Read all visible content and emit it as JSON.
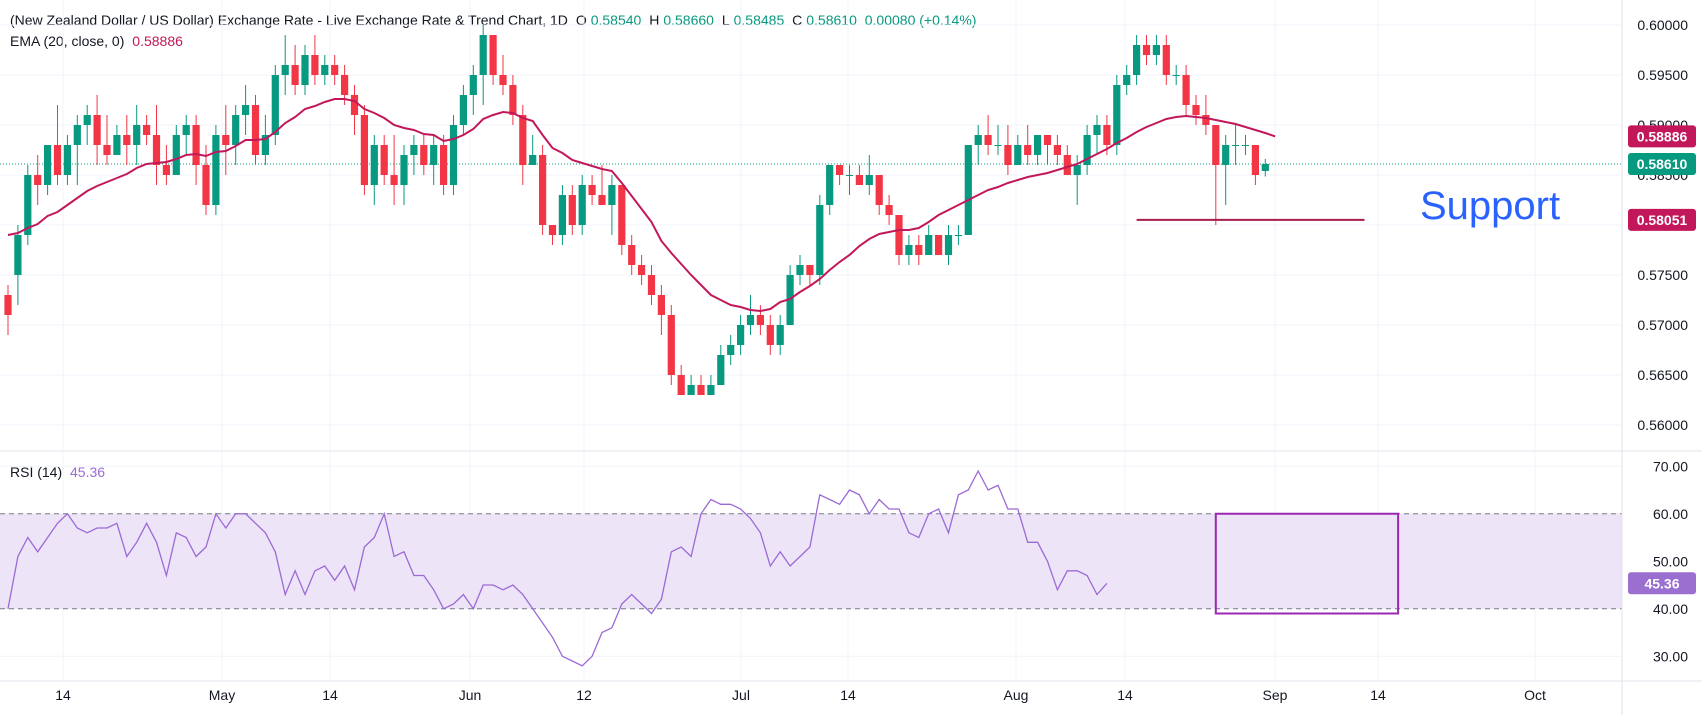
{
  "header": {
    "title": "(New Zealand Dollar / US Dollar) Exchange Rate - Live Exchange Rate & Trend Chart, 1D",
    "ohlc": [
      {
        "label": "O",
        "value": "0.58540"
      },
      {
        "label": "H",
        "value": "0.58660"
      },
      {
        "label": "L",
        "value": "0.58485"
      },
      {
        "label": "C",
        "value": "0.58610"
      }
    ],
    "change": "0.00080 (+0.14%)"
  },
  "ema_legend": {
    "label": "EMA (20, close, 0)",
    "value": "0.58886"
  },
  "rsi_legend": {
    "label": "RSI (14)",
    "value": "45.36"
  },
  "annotations": {
    "support_text": "Support"
  },
  "colors": {
    "up": "#089981",
    "down": "#f23645",
    "ema": "#c2185b",
    "rsi": "#9c6ad6",
    "rsi_band": "#ede4f8",
    "support_line": "#a61e4d",
    "support_text": "#2962ff",
    "price_badge": "#089981",
    "ema_badge": "#c2185b",
    "support_badge": "#c2185b",
    "rsi_badge": "#9b6fcf",
    "box": "#9c27b0"
  },
  "chart_data": [
    {
      "type": "candlestick",
      "title": "",
      "ylim": [
        0.5575,
        0.6025
      ],
      "x_tick_labels": [
        "14",
        "May",
        "14",
        "Jun",
        "12",
        "Jul",
        "14",
        "Aug",
        "14",
        "Sep",
        "14",
        "Oct"
      ],
      "y_tick_labels": [
        "0.60000",
        "0.59500",
        "0.59000",
        "0.58500",
        "0.58000",
        "0.57500",
        "0.57000",
        "0.56500",
        "0.56000"
      ],
      "y_ticks": [
        0.6,
        0.595,
        0.59,
        0.585,
        0.58,
        0.575,
        0.57,
        0.565,
        0.56
      ],
      "last_price": {
        "value": 0.5861,
        "label": "0.58610"
      },
      "ema_last": {
        "value": 0.58886,
        "label": "0.58886"
      },
      "support": {
        "value": 0.58051,
        "label": "0.58051"
      },
      "candles": [
        [
          0.573,
          0.574,
          0.569,
          0.571
        ],
        [
          0.575,
          0.58,
          0.572,
          0.579
        ],
        [
          0.579,
          0.586,
          0.578,
          0.585
        ],
        [
          0.585,
          0.587,
          0.582,
          0.584
        ],
        [
          0.584,
          0.588,
          0.583,
          0.588
        ],
        [
          0.588,
          0.592,
          0.584,
          0.585
        ],
        [
          0.585,
          0.589,
          0.584,
          0.588
        ],
        [
          0.588,
          0.591,
          0.584,
          0.59
        ],
        [
          0.59,
          0.592,
          0.588,
          0.591
        ],
        [
          0.591,
          0.593,
          0.586,
          0.588
        ],
        [
          0.588,
          0.591,
          0.586,
          0.587
        ],
        [
          0.587,
          0.59,
          0.587,
          0.589
        ],
        [
          0.589,
          0.591,
          0.586,
          0.588
        ],
        [
          0.588,
          0.592,
          0.586,
          0.59
        ],
        [
          0.59,
          0.591,
          0.588,
          0.589
        ],
        [
          0.589,
          0.592,
          0.584,
          0.586
        ],
        [
          0.586,
          0.588,
          0.584,
          0.585
        ],
        [
          0.585,
          0.59,
          0.585,
          0.589
        ],
        [
          0.589,
          0.591,
          0.587,
          0.59
        ],
        [
          0.59,
          0.591,
          0.584,
          0.586
        ],
        [
          0.586,
          0.588,
          0.581,
          0.582
        ],
        [
          0.582,
          0.59,
          0.581,
          0.589
        ],
        [
          0.589,
          0.592,
          0.585,
          0.588
        ],
        [
          0.588,
          0.592,
          0.586,
          0.591
        ],
        [
          0.591,
          0.594,
          0.589,
          0.592
        ],
        [
          0.592,
          0.593,
          0.586,
          0.587
        ],
        [
          0.587,
          0.591,
          0.586,
          0.589
        ],
        [
          0.589,
          0.596,
          0.588,
          0.595
        ],
        [
          0.595,
          0.599,
          0.593,
          0.596
        ],
        [
          0.596,
          0.598,
          0.593,
          0.594
        ],
        [
          0.594,
          0.598,
          0.593,
          0.597
        ],
        [
          0.597,
          0.599,
          0.594,
          0.595
        ],
        [
          0.595,
          0.597,
          0.594,
          0.596
        ],
        [
          0.596,
          0.597,
          0.594,
          0.595
        ],
        [
          0.595,
          0.596,
          0.592,
          0.593
        ],
        [
          0.593,
          0.594,
          0.589,
          0.591
        ],
        [
          0.591,
          0.592,
          0.583,
          0.584
        ],
        [
          0.584,
          0.589,
          0.582,
          0.588
        ],
        [
          0.588,
          0.589,
          0.584,
          0.585
        ],
        [
          0.585,
          0.589,
          0.582,
          0.584
        ],
        [
          0.584,
          0.588,
          0.582,
          0.587
        ],
        [
          0.587,
          0.589,
          0.585,
          0.588
        ],
        [
          0.588,
          0.589,
          0.585,
          0.586
        ],
        [
          0.586,
          0.589,
          0.584,
          0.588
        ],
        [
          0.588,
          0.589,
          0.583,
          0.584
        ],
        [
          0.584,
          0.591,
          0.583,
          0.59
        ],
        [
          0.59,
          0.594,
          0.589,
          0.593
        ],
        [
          0.593,
          0.596,
          0.591,
          0.595
        ],
        [
          0.595,
          0.6,
          0.592,
          0.599
        ],
        [
          0.599,
          0.599,
          0.594,
          0.595
        ],
        [
          0.595,
          0.597,
          0.593,
          0.594
        ],
        [
          0.594,
          0.595,
          0.59,
          0.591
        ],
        [
          0.591,
          0.592,
          0.584,
          0.586
        ],
        [
          0.586,
          0.589,
          0.586,
          0.587
        ],
        [
          0.587,
          0.588,
          0.579,
          0.58
        ],
        [
          0.58,
          0.58,
          0.578,
          0.579
        ],
        [
          0.579,
          0.584,
          0.578,
          0.583
        ],
        [
          0.583,
          0.584,
          0.579,
          0.58
        ],
        [
          0.58,
          0.585,
          0.579,
          0.584
        ],
        [
          0.584,
          0.585,
          0.582,
          0.583
        ],
        [
          0.583,
          0.586,
          0.582,
          0.582
        ],
        [
          0.582,
          0.585,
          0.579,
          0.584
        ],
        [
          0.584,
          0.584,
          0.577,
          0.578
        ],
        [
          0.578,
          0.579,
          0.575,
          0.576
        ],
        [
          0.576,
          0.577,
          0.574,
          0.575
        ],
        [
          0.575,
          0.576,
          0.572,
          0.573
        ],
        [
          0.573,
          0.574,
          0.569,
          0.571
        ],
        [
          0.571,
          0.572,
          0.564,
          0.565
        ],
        [
          0.565,
          0.566,
          0.563,
          0.563
        ],
        [
          0.563,
          0.565,
          0.563,
          0.564
        ],
        [
          0.564,
          0.565,
          0.563,
          0.563
        ],
        [
          0.563,
          0.565,
          0.563,
          0.564
        ],
        [
          0.564,
          0.568,
          0.564,
          0.567
        ],
        [
          0.567,
          0.569,
          0.566,
          0.568
        ],
        [
          0.568,
          0.571,
          0.567,
          0.57
        ],
        [
          0.57,
          0.573,
          0.569,
          0.571
        ],
        [
          0.571,
          0.572,
          0.569,
          0.57
        ],
        [
          0.57,
          0.571,
          0.567,
          0.568
        ],
        [
          0.568,
          0.571,
          0.567,
          0.57
        ],
        [
          0.57,
          0.576,
          0.57,
          0.575
        ],
        [
          0.575,
          0.577,
          0.574,
          0.576
        ],
        [
          0.576,
          0.576,
          0.574,
          0.575
        ],
        [
          0.575,
          0.583,
          0.574,
          0.582
        ],
        [
          0.582,
          0.586,
          0.581,
          0.586
        ],
        [
          0.586,
          0.586,
          0.584,
          0.585
        ],
        [
          0.585,
          0.586,
          0.583,
          0.585
        ],
        [
          0.585,
          0.586,
          0.584,
          0.584
        ],
        [
          0.584,
          0.587,
          0.583,
          0.585
        ],
        [
          0.585,
          0.585,
          0.581,
          0.582
        ],
        [
          0.582,
          0.583,
          0.58,
          0.581
        ],
        [
          0.581,
          0.581,
          0.576,
          0.577
        ],
        [
          0.577,
          0.579,
          0.576,
          0.578
        ],
        [
          0.578,
          0.579,
          0.576,
          0.577
        ],
        [
          0.577,
          0.58,
          0.577,
          0.579
        ],
        [
          0.579,
          0.579,
          0.577,
          0.577
        ],
        [
          0.577,
          0.58,
          0.576,
          0.579
        ],
        [
          0.579,
          0.58,
          0.578,
          0.579
        ],
        [
          0.579,
          0.588,
          0.579,
          0.588
        ],
        [
          0.588,
          0.59,
          0.586,
          0.589
        ],
        [
          0.589,
          0.591,
          0.587,
          0.588
        ],
        [
          0.588,
          0.59,
          0.587,
          0.588
        ],
        [
          0.588,
          0.59,
          0.585,
          0.586
        ],
        [
          0.586,
          0.589,
          0.586,
          0.588
        ],
        [
          0.588,
          0.59,
          0.586,
          0.587
        ],
        [
          0.587,
          0.589,
          0.586,
          0.589
        ],
        [
          0.589,
          0.589,
          0.586,
          0.588
        ],
        [
          0.588,
          0.589,
          0.586,
          0.587
        ],
        [
          0.587,
          0.588,
          0.585,
          0.585
        ],
        [
          0.585,
          0.587,
          0.582,
          0.586
        ],
        [
          0.586,
          0.59,
          0.585,
          0.589
        ],
        [
          0.589,
          0.591,
          0.587,
          0.59
        ],
        [
          0.59,
          0.591,
          0.587,
          0.588
        ],
        [
          0.588,
          0.595,
          0.587,
          0.594
        ],
        [
          0.594,
          0.596,
          0.593,
          0.595
        ],
        [
          0.595,
          0.599,
          0.594,
          0.598
        ],
        [
          0.598,
          0.599,
          0.596,
          0.597
        ],
        [
          0.597,
          0.599,
          0.596,
          0.598
        ],
        [
          0.598,
          0.599,
          0.594,
          0.595
        ],
        [
          0.595,
          0.596,
          0.594,
          0.595
        ],
        [
          0.595,
          0.596,
          0.591,
          0.592
        ],
        [
          0.592,
          0.593,
          0.59,
          0.591
        ],
        [
          0.591,
          0.593,
          0.589,
          0.59
        ],
        [
          0.59,
          0.59,
          0.58,
          0.586
        ],
        [
          0.586,
          0.589,
          0.582,
          0.588
        ],
        [
          0.588,
          0.59,
          0.586,
          0.588
        ],
        [
          0.588,
          0.589,
          0.587,
          0.588
        ],
        [
          0.588,
          0.588,
          0.584,
          0.585
        ],
        [
          0.5854,
          0.5866,
          0.58485,
          0.5861
        ]
      ],
      "ema_values": [
        0.579,
        0.5792,
        0.5797,
        0.5801,
        0.5809,
        0.5813,
        0.582,
        0.5827,
        0.5834,
        0.5839,
        0.5843,
        0.5847,
        0.5851,
        0.5857,
        0.5861,
        0.5862,
        0.5863,
        0.5866,
        0.587,
        0.5871,
        0.5869,
        0.5873,
        0.5874,
        0.5879,
        0.5885,
        0.5885,
        0.5886,
        0.5893,
        0.5902,
        0.5908,
        0.5916,
        0.5919,
        0.5923,
        0.5926,
        0.5926,
        0.5924,
        0.5916,
        0.5912,
        0.5907,
        0.59,
        0.5897,
        0.5895,
        0.5891,
        0.589,
        0.5884,
        0.5886,
        0.589,
        0.5896,
        0.5906,
        0.591,
        0.5913,
        0.5912,
        0.5907,
        0.5904,
        0.589,
        0.5877,
        0.5872,
        0.5865,
        0.5862,
        0.5859,
        0.5856,
        0.5854,
        0.5842,
        0.5829,
        0.5816,
        0.5803,
        0.5784,
        0.5772,
        0.5761,
        0.575,
        0.574,
        0.573,
        0.5725,
        0.572,
        0.5718,
        0.5715,
        0.5714,
        0.5716,
        0.5723,
        0.5726,
        0.5733,
        0.5739,
        0.5746,
        0.5755,
        0.5763,
        0.577,
        0.5779,
        0.5786,
        0.5791,
        0.5793,
        0.5795,
        0.5795,
        0.5797,
        0.5803,
        0.581,
        0.5815,
        0.582,
        0.5825,
        0.583,
        0.5835,
        0.5838,
        0.5842,
        0.5845,
        0.5848,
        0.585,
        0.5852,
        0.5855,
        0.5858,
        0.5861,
        0.5866,
        0.5871,
        0.5876,
        0.5882,
        0.5887,
        0.5893,
        0.5898,
        0.5902,
        0.5906,
        0.5908,
        0.5909,
        0.5908,
        0.5907,
        0.5905,
        0.5903,
        0.5901,
        0.5898,
        0.5895,
        0.5892,
        0.58886
      ],
      "overlays": {
        "support_segment_x": [
          114,
          135
        ],
        "annotation_text": "Support"
      }
    },
    {
      "type": "line",
      "title": "",
      "ylim": [
        25,
        73
      ],
      "y_tick_labels": [
        "70.00",
        "60.00",
        "50.00",
        "40.00",
        "30.00"
      ],
      "y_ticks": [
        70,
        60,
        50,
        40,
        30
      ],
      "band": [
        40,
        60
      ],
      "last": {
        "value": 45.36,
        "label": "45.36"
      },
      "series": [
        {
          "values": [
            40,
            51,
            55,
            52,
            55,
            58,
            60,
            57,
            56,
            57,
            57,
            58,
            51,
            54,
            58,
            54,
            47,
            56,
            55,
            51,
            53,
            60,
            57,
            60,
            60,
            58,
            56,
            52,
            43,
            48,
            43,
            48,
            49,
            46,
            49,
            44,
            53,
            55,
            60,
            51,
            52,
            47,
            47,
            44,
            40,
            41,
            43,
            40,
            45,
            45,
            44,
            45,
            43,
            40,
            37,
            34,
            30,
            29,
            28,
            30,
            35,
            36,
            41,
            43,
            41,
            39,
            42,
            52,
            53,
            51,
            60,
            63,
            62,
            62,
            61,
            59,
            56,
            49,
            52,
            49,
            51,
            53,
            64,
            63,
            62,
            65,
            64,
            60,
            63,
            61,
            61,
            56,
            55,
            60,
            61,
            56,
            64,
            65,
            69,
            65,
            66,
            61,
            61,
            54,
            54,
            50,
            44,
            48,
            48,
            47,
            43,
            45.36
          ]
        }
      ],
      "overlays": {
        "box_x": [
          122,
          139
        ],
        "box_y": [
          39,
          60
        ]
      }
    }
  ]
}
